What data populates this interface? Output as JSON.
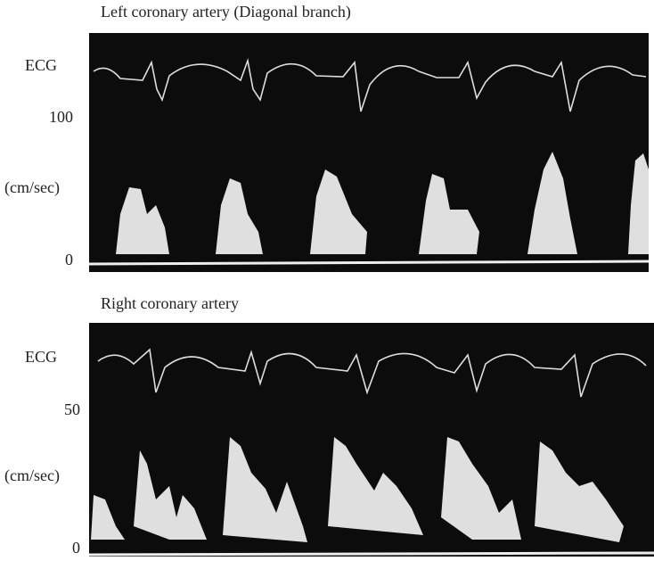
{
  "panels": [
    {
      "title": "Left coronary artery (Diagonal branch)",
      "ecg_label": "ECG",
      "scale_top": 100,
      "unit": "(cm/sec)",
      "scale_zero": 0
    },
    {
      "title": "Right coronary artery",
      "ecg_label": "ECG",
      "scale_top": 50,
      "unit": "(cm/sec)",
      "scale_zero": 0
    }
  ]
}
